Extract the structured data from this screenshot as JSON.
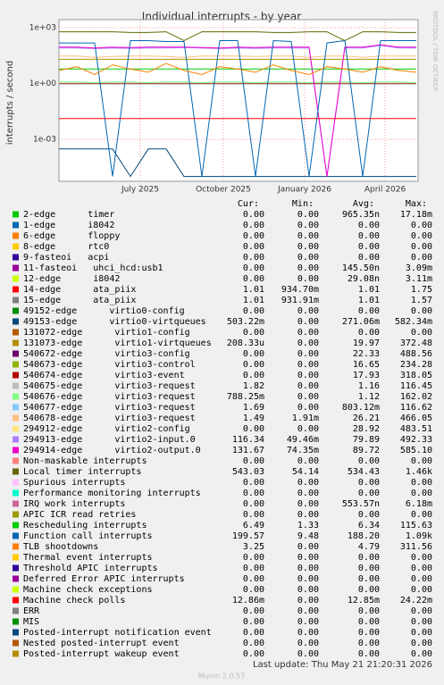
{
  "chart_data": {
    "type": "line",
    "title": "Individual interrupts - by year",
    "y_label": "interrupts / second",
    "side_note": "RRDTOOL / TOBI OETIKER",
    "log_y": true,
    "grid": true,
    "ylim": [
      5.5e-06,
      2700
    ],
    "yticks": [
      {
        "value": 1000,
        "label": "1e+03"
      },
      {
        "value": 1,
        "label": "1e+00"
      },
      {
        "value": 0.001,
        "label": "1e-03"
      }
    ],
    "xlim": [
      0,
      402
    ],
    "xticks": [
      {
        "value": 91,
        "label": "July 2025"
      },
      {
        "value": 184,
        "label": "October 2025"
      },
      {
        "value": 275,
        "label": "January 2026"
      },
      {
        "value": 365,
        "label": "April 2026"
      }
    ],
    "x": [
      0,
      20,
      40,
      60,
      80,
      100,
      120,
      140,
      160,
      180,
      200,
      220,
      240,
      260,
      280,
      300,
      320,
      340,
      360,
      380,
      400
    ],
    "columns": [
      "Cur:",
      "Min:",
      "Avg:",
      "Max:"
    ],
    "series": [
      {
        "name": "2-edge      timer",
        "color": "#00CC00",
        "stats": [
          "0.00",
          "0.00",
          "965.35n",
          "17.18m"
        ]
      },
      {
        "name": "1-edge      i8042",
        "color": "#0066B3",
        "stats": [
          "0.00",
          "0.00",
          "0.00",
          "0.00"
        ]
      },
      {
        "name": "6-edge      floppy",
        "color": "#FF8000",
        "stats": [
          "0.00",
          "0.00",
          "0.00",
          "0.00"
        ]
      },
      {
        "name": "8-edge      rtc0",
        "color": "#FFCC00",
        "stats": [
          "0.00",
          "0.00",
          "0.00",
          "0.00"
        ]
      },
      {
        "name": "9-fasteoi   acpi",
        "color": "#330099",
        "stats": [
          "0.00",
          "0.00",
          "0.00",
          "0.00"
        ]
      },
      {
        "name": "11-fasteoi   uhci_hcd:usb1",
        "color": "#990099",
        "stats": [
          "0.00",
          "0.00",
          "145.50n",
          "3.09m"
        ]
      },
      {
        "name": "12-edge      i8042",
        "color": "#CCFF00",
        "stats": [
          "0.00",
          "0.00",
          "29.08n",
          "3.11m"
        ]
      },
      {
        "name": "14-edge      ata_piix",
        "color": "#FF0000",
        "stats": [
          "1.01",
          "934.70m",
          "1.01",
          "1.75"
        ],
        "values": [
          1.01,
          1.01,
          1.01,
          1.01,
          1.01,
          1.01,
          1.01,
          1.01,
          1.01,
          1.01,
          1.01,
          1.01,
          1.01,
          1.01,
          1.01,
          1.01,
          1.01,
          1.01,
          1.01,
          1.01,
          1.01
        ]
      },
      {
        "name": "15-edge      ata_piix",
        "color": "#808080",
        "stats": [
          "1.01",
          "931.91m",
          "1.01",
          "1.57"
        ],
        "values": [
          0.95,
          0.95,
          0.95,
          0.95,
          0.95,
          0.95,
          0.95,
          0.95,
          0.95,
          0.95,
          0.95,
          0.95,
          0.95,
          0.95,
          0.95,
          0.95,
          0.95,
          0.95,
          0.95,
          0.95,
          0.95
        ]
      },
      {
        "name": "49152-edge      virtio0-config",
        "color": "#008F00",
        "stats": [
          "0.00",
          "0.00",
          "0.00",
          "0.00"
        ]
      },
      {
        "name": "49153-edge      virtio0-virtqueues",
        "color": "#00487D",
        "stats": [
          "503.22m",
          "0.00",
          "271.06m",
          "582.34m"
        ],
        "values": [
          0.0003,
          0.0003,
          0.0003,
          0.0003,
          1e-05,
          0.0003,
          0.0003,
          1e-05,
          1e-05,
          1e-05,
          1e-05,
          1e-05,
          1e-05,
          1e-05,
          1e-05,
          1e-05,
          1e-05,
          1e-05,
          1e-05,
          1e-05,
          1e-05
        ]
      },
      {
        "name": "131072-edge      virtio1-config",
        "color": "#B35A00",
        "stats": [
          "0.00",
          "0.00",
          "0.00",
          "0.00"
        ]
      },
      {
        "name": "131073-edge      virtio1-virtqueues",
        "color": "#B38F00",
        "stats": [
          "208.33u",
          "0.00",
          "19.97",
          "372.48"
        ],
        "values": [
          20,
          20,
          20,
          20,
          20,
          20,
          20,
          20,
          20,
          20,
          20,
          20,
          20,
          20,
          20,
          20,
          20,
          20,
          20,
          20,
          20
        ]
      },
      {
        "name": "540672-edge      virtio3-config",
        "color": "#6B006B",
        "stats": [
          "0.00",
          "0.00",
          "22.33",
          "488.56"
        ]
      },
      {
        "name": "540673-edge      virtio3-control",
        "color": "#8FB300",
        "stats": [
          "0.00",
          "0.00",
          "16.65",
          "234.28"
        ]
      },
      {
        "name": "540674-edge      virtio3-event",
        "color": "#B30000",
        "stats": [
          "0.00",
          "0.00",
          "17.93",
          "318.05"
        ]
      },
      {
        "name": "540675-edge      virtio3-request",
        "color": "#BEBEBE",
        "stats": [
          "1.82",
          "0.00",
          "1.16",
          "116.45"
        ]
      },
      {
        "name": "540676-edge      virtio3-request",
        "color": "#80FF80",
        "stats": [
          "788.25m",
          "0.00",
          "1.12",
          "162.02"
        ],
        "values": [
          1.2,
          1.2,
          1.1,
          1.2,
          1.2,
          1.1,
          1.2,
          1.2,
          1.1,
          1.2,
          1.2,
          1.1,
          1.2,
          1.2,
          1.1,
          1.2,
          1.2,
          1.1,
          1.2,
          1.2,
          1.1
        ]
      },
      {
        "name": "540677-edge      virtio3-request",
        "color": "#80C9FF",
        "stats": [
          "1.69",
          "0.00",
          "803.12m",
          "116.62"
        ]
      },
      {
        "name": "540678-edge      virtio3-request",
        "color": "#FFC080",
        "stats": [
          "1.49",
          "1.91m",
          "26.21",
          "466.05"
        ],
        "values": [
          30,
          30,
          25,
          28,
          30,
          30,
          28,
          25,
          30,
          30,
          30,
          28,
          30,
          30,
          25,
          30,
          30,
          25,
          30,
          30,
          30
        ]
      },
      {
        "name": "294912-edge      virtio2-config",
        "color": "#FFE680",
        "stats": [
          "0.00",
          "0.00",
          "28.92",
          "483.51"
        ]
      },
      {
        "name": "294913-edge      virtio2-input.0",
        "color": "#AA80FF",
        "stats": [
          "116.34",
          "49.46m",
          "79.89",
          "492.33"
        ],
        "values": [
          80,
          80,
          75,
          80,
          78,
          80,
          80,
          85,
          80,
          75,
          80,
          78,
          80,
          80,
          80,
          1e-05,
          80,
          80,
          110,
          80,
          80
        ]
      },
      {
        "name": "294914-edge      virtio2-output.0",
        "color": "#EE00CC",
        "stats": [
          "131.67",
          "74.35m",
          "89.72",
          "585.10"
        ],
        "values": [
          90,
          90,
          80,
          90,
          85,
          90,
          90,
          90,
          85,
          80,
          90,
          85,
          90,
          90,
          90,
          1e-05,
          90,
          90,
          120,
          90,
          90
        ]
      },
      {
        "name": "Non-maskable interrupts",
        "color": "#FF8080",
        "stats": [
          "0.00",
          "0.00",
          "0.00",
          "0.00"
        ]
      },
      {
        "name": "Local timer interrupts",
        "color": "#666600",
        "stats": [
          "543.03",
          "54.14",
          "534.43",
          "1.46k"
        ],
        "values": [
          600,
          600,
          600,
          600,
          550,
          550,
          600,
          200,
          600,
          600,
          600,
          600,
          550,
          550,
          600,
          600,
          200,
          600,
          600,
          550,
          550
        ]
      },
      {
        "name": "Spurious interrupts",
        "color": "#FFBFFF",
        "stats": [
          "0.00",
          "0.00",
          "0.00",
          "0.00"
        ]
      },
      {
        "name": "Performance monitoring interrupts",
        "color": "#00FFCC",
        "stats": [
          "0.00",
          "0.00",
          "0.00",
          "0.00"
        ]
      },
      {
        "name": "IRQ work interrupts",
        "color": "#CC6699",
        "stats": [
          "0.00",
          "0.00",
          "553.57n",
          "6.18m"
        ]
      },
      {
        "name": "APIC ICR read retries",
        "color": "#999900",
        "stats": [
          "0.00",
          "0.00",
          "0.00",
          "0.00"
        ]
      },
      {
        "name": "Rescheduling interrupts",
        "color": "#00CC00",
        "stats": [
          "6.49",
          "1.33",
          "6.34",
          "115.63"
        ],
        "values": [
          6,
          6,
          6,
          6,
          6,
          6,
          6,
          6,
          6,
          6,
          6,
          6,
          6,
          6,
          6,
          6,
          6,
          6,
          6,
          6,
          6
        ]
      },
      {
        "name": "Function call interrupts",
        "color": "#0066B3",
        "stats": [
          "199.57",
          "9.48",
          "188.20",
          "1.09k"
        ],
        "values": [
          150,
          150,
          150,
          1e-05,
          200,
          200,
          180,
          180,
          1e-05,
          200,
          200,
          1e-05,
          200,
          180,
          1e-05,
          150,
          200,
          1e-05,
          200,
          200,
          200
        ]
      },
      {
        "name": "TLB shootdowns",
        "color": "#FF8000",
        "stats": [
          "3.25",
          "0.00",
          "4.79",
          "311.56"
        ],
        "values": [
          5,
          8,
          3,
          10,
          6,
          4,
          12,
          5,
          3,
          8,
          6,
          4,
          10,
          5,
          3,
          8,
          6,
          4,
          8,
          5,
          4
        ]
      },
      {
        "name": "Thermal event interrupts",
        "color": "#FFCC00",
        "stats": [
          "0.00",
          "0.00",
          "0.00",
          "0.00"
        ]
      },
      {
        "name": "Threshold APIC interrupts",
        "color": "#330099",
        "stats": [
          "0.00",
          "0.00",
          "0.00",
          "0.00"
        ]
      },
      {
        "name": "Deferred Error APIC interrupts",
        "color": "#990099",
        "stats": [
          "0.00",
          "0.00",
          "0.00",
          "0.00"
        ]
      },
      {
        "name": "Machine check exceptions",
        "color": "#CCFF00",
        "stats": [
          "0.00",
          "0.00",
          "0.00",
          "0.00"
        ]
      },
      {
        "name": "Machine check polls",
        "color": "#FF0000",
        "stats": [
          "12.86m",
          "0.00",
          "12.85m",
          "24.22m"
        ],
        "values": [
          0.0129,
          0.0129,
          0.0129,
          0.0129,
          0.0129,
          0.0129,
          0.0129,
          0.0129,
          0.0129,
          0.0129,
          0.0129,
          0.0129,
          0.0129,
          0.0129,
          0.0129,
          0.0129,
          0.0129,
          0.0129,
          0.0129,
          0.0129,
          0.0129
        ]
      },
      {
        "name": "ERR",
        "color": "#808080",
        "stats": [
          "0.00",
          "0.00",
          "0.00",
          "0.00"
        ]
      },
      {
        "name": "MIS",
        "color": "#008F00",
        "stats": [
          "0.00",
          "0.00",
          "0.00",
          "0.00"
        ]
      },
      {
        "name": "Posted-interrupt notification event",
        "color": "#00487D",
        "stats": [
          "0.00",
          "0.00",
          "0.00",
          "0.00"
        ]
      },
      {
        "name": "Nested posted-interrupt event",
        "color": "#B35A00",
        "stats": [
          "0.00",
          "0.00",
          "0.00",
          "0.00"
        ]
      },
      {
        "name": "Posted-interrupt wakeup event",
        "color": "#B38F00",
        "stats": [
          "0.00",
          "0.00",
          "0.00",
          "0.00"
        ]
      }
    ],
    "last_update": "Last update: Thu May 21 21:20:31 2026",
    "footer": "Munin 2.0.57"
  }
}
